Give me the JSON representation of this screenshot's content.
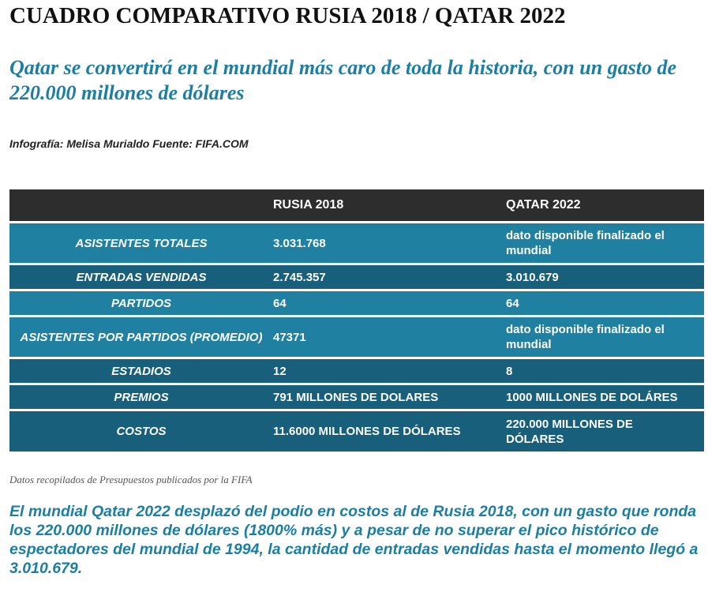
{
  "title": "CUADRO COMPARATIVO RUSIA 2018 / QATAR 2022",
  "subtitle": "Qatar se convertirá en el mundial más caro de toda la historia, con un gasto de 220.000 millones de dólares",
  "credit": "Infografía: Melisa Murialdo Fuente: FIFA.COM",
  "table": {
    "headers": [
      "",
      "RUSIA 2018",
      "QATAR 2022"
    ],
    "rows": [
      {
        "label": "ASISTENTES TOTALES",
        "rusia": "3.031.768",
        "qatar": "dato disponible finalizado el mundial",
        "shade": "light"
      },
      {
        "label": "ENTRADAS VENDIDAS",
        "rusia": "2.745.357",
        "qatar": "3.010.679",
        "shade": "dark"
      },
      {
        "label": "PARTIDOS",
        "rusia": "64",
        "qatar": "64",
        "shade": "light"
      },
      {
        "label": "ASISTENTES POR PARTIDOS (PROMEDIO)",
        "rusia": "47371",
        "qatar": "dato disponible finalizado el mundial",
        "shade": "light"
      },
      {
        "label": "ESTADIOS",
        "rusia": "12",
        "qatar": "8",
        "shade": "dark"
      },
      {
        "label": "PREMIOS",
        "rusia": "791 MILLONES DE DOLARES",
        "qatar": "1000 MILLONES DE DOLÁRES",
        "shade": "dark"
      },
      {
        "label": "COSTOS",
        "rusia": "11.6000 MILLONES DE DÓLARES",
        "qatar": "220.000 MILLONES DE DÓLARES",
        "shade": "dark"
      }
    ],
    "colors": {
      "header": "#2d2d2d",
      "light": "#1f80a2",
      "dark": "#175f7b"
    }
  },
  "note": "Datos recopilados de Presupuestos publicados por la FIFA",
  "body": "El mundial Qatar 2022 desplazó del podio en costos al de Rusia 2018, con un gasto que ronda los 220.000 millones de dólares (1800% más) y a pesar de no superar el pico histórico de espectadores del mundial de 1994, la cantidad de entradas vendidas hasta el momento llegó a 3.010.679."
}
